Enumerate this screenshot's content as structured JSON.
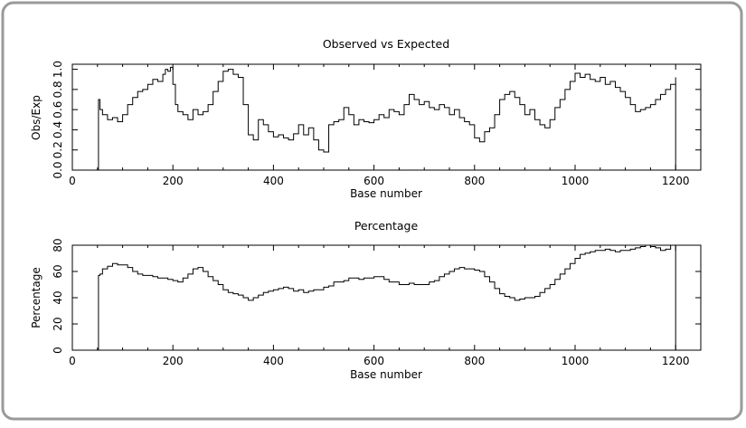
{
  "chart_data": [
    {
      "type": "line",
      "title": "Observed vs Expected",
      "xlabel": "Base number",
      "ylabel": "Obs/Exp",
      "xlim": [
        0,
        1250
      ],
      "ylim": [
        0.0,
        1.05
      ],
      "x_ticks": [
        0,
        200,
        400,
        600,
        800,
        1000,
        1200
      ],
      "y_ticks": [
        0.0,
        0.2,
        0.4,
        0.6,
        0.8,
        1.0
      ],
      "y_tick_labels": [
        "0.0",
        "0.2",
        "0.4",
        "0.6",
        "0.8",
        "1.0"
      ],
      "series": [
        {
          "x": [
            50,
            52,
            55,
            60,
            70,
            80,
            90,
            100,
            110,
            120,
            130,
            140,
            150,
            160,
            170,
            180,
            185,
            190,
            195,
            200,
            205,
            210,
            220,
            230,
            240,
            250,
            260,
            270,
            280,
            290,
            300,
            310,
            320,
            330,
            340,
            350,
            360,
            370,
            380,
            390,
            400,
            410,
            420,
            430,
            440,
            450,
            460,
            470,
            480,
            490,
            500,
            510,
            520,
            530,
            540,
            550,
            560,
            570,
            580,
            590,
            600,
            610,
            620,
            630,
            640,
            650,
            660,
            670,
            680,
            690,
            700,
            710,
            720,
            730,
            740,
            750,
            760,
            770,
            780,
            790,
            800,
            810,
            820,
            830,
            840,
            850,
            860,
            870,
            880,
            890,
            900,
            910,
            920,
            930,
            940,
            950,
            960,
            970,
            980,
            990,
            1000,
            1010,
            1020,
            1030,
            1040,
            1050,
            1060,
            1070,
            1080,
            1090,
            1100,
            1110,
            1120,
            1130,
            1140,
            1150,
            1160,
            1170,
            1180,
            1190,
            1200
          ],
          "values": [
            0.0,
            0.7,
            0.6,
            0.55,
            0.5,
            0.52,
            0.48,
            0.55,
            0.65,
            0.72,
            0.78,
            0.8,
            0.85,
            0.9,
            0.88,
            0.95,
            1.0,
            0.98,
            1.02,
            0.85,
            0.65,
            0.58,
            0.55,
            0.5,
            0.6,
            0.55,
            0.58,
            0.65,
            0.78,
            0.88,
            0.98,
            1.0,
            0.95,
            0.92,
            0.65,
            0.35,
            0.3,
            0.5,
            0.45,
            0.38,
            0.33,
            0.35,
            0.32,
            0.3,
            0.36,
            0.45,
            0.35,
            0.42,
            0.3,
            0.2,
            0.18,
            0.45,
            0.48,
            0.5,
            0.62,
            0.55,
            0.45,
            0.5,
            0.48,
            0.47,
            0.5,
            0.55,
            0.52,
            0.6,
            0.58,
            0.55,
            0.65,
            0.75,
            0.7,
            0.65,
            0.68,
            0.62,
            0.6,
            0.65,
            0.62,
            0.55,
            0.6,
            0.52,
            0.48,
            0.45,
            0.32,
            0.28,
            0.38,
            0.42,
            0.55,
            0.7,
            0.75,
            0.78,
            0.72,
            0.65,
            0.55,
            0.6,
            0.5,
            0.45,
            0.42,
            0.5,
            0.62,
            0.7,
            0.8,
            0.88,
            0.96,
            0.92,
            0.95,
            0.9,
            0.88,
            0.92,
            0.85,
            0.88,
            0.82,
            0.78,
            0.72,
            0.65,
            0.58,
            0.6,
            0.62,
            0.65,
            0.7,
            0.75,
            0.8,
            0.85,
            0.92
          ]
        }
      ]
    },
    {
      "type": "line",
      "title": "Percentage",
      "xlabel": "Base number",
      "ylabel": "Percentage",
      "xlim": [
        0,
        1250
      ],
      "ylim": [
        0,
        80
      ],
      "x_ticks": [
        0,
        200,
        400,
        600,
        800,
        1000,
        1200
      ],
      "y_ticks": [
        0,
        20,
        40,
        60,
        80
      ],
      "series": [
        {
          "x": [
            50,
            52,
            55,
            60,
            70,
            80,
            90,
            100,
            110,
            120,
            130,
            140,
            150,
            160,
            170,
            180,
            190,
            200,
            210,
            220,
            230,
            240,
            250,
            260,
            270,
            280,
            290,
            300,
            310,
            320,
            330,
            340,
            350,
            360,
            370,
            380,
            390,
            400,
            410,
            420,
            430,
            440,
            450,
            460,
            470,
            480,
            490,
            500,
            510,
            520,
            530,
            540,
            550,
            560,
            570,
            580,
            590,
            600,
            610,
            620,
            630,
            640,
            650,
            660,
            670,
            680,
            690,
            700,
            710,
            720,
            730,
            740,
            750,
            760,
            770,
            780,
            790,
            800,
            810,
            820,
            830,
            840,
            850,
            860,
            870,
            880,
            890,
            900,
            910,
            920,
            930,
            940,
            950,
            960,
            970,
            980,
            990,
            1000,
            1010,
            1020,
            1030,
            1040,
            1050,
            1060,
            1070,
            1080,
            1090,
            1100,
            1110,
            1120,
            1130,
            1140,
            1150,
            1160,
            1170,
            1180,
            1190,
            1200
          ],
          "values": [
            0,
            57,
            58,
            62,
            64,
            66,
            65,
            65,
            63,
            60,
            58,
            57,
            57,
            56,
            55,
            55,
            54,
            53,
            52,
            55,
            58,
            62,
            63,
            60,
            56,
            53,
            50,
            46,
            44,
            43,
            42,
            40,
            38,
            40,
            42,
            44,
            45,
            46,
            47,
            48,
            47,
            45,
            46,
            44,
            45,
            46,
            46,
            48,
            49,
            52,
            52,
            53,
            55,
            55,
            54,
            55,
            55,
            56,
            56,
            54,
            52,
            52,
            50,
            50,
            51,
            50,
            50,
            50,
            52,
            53,
            56,
            58,
            60,
            62,
            63,
            62,
            62,
            61,
            60,
            56,
            52,
            47,
            43,
            41,
            40,
            38,
            39,
            40,
            40,
            41,
            44,
            47,
            50,
            54,
            58,
            62,
            66,
            70,
            73,
            74,
            75,
            76,
            76,
            77,
            76,
            75,
            76,
            76,
            77,
            78,
            79,
            80,
            79,
            78,
            76,
            77,
            80,
            80
          ]
        }
      ]
    }
  ]
}
